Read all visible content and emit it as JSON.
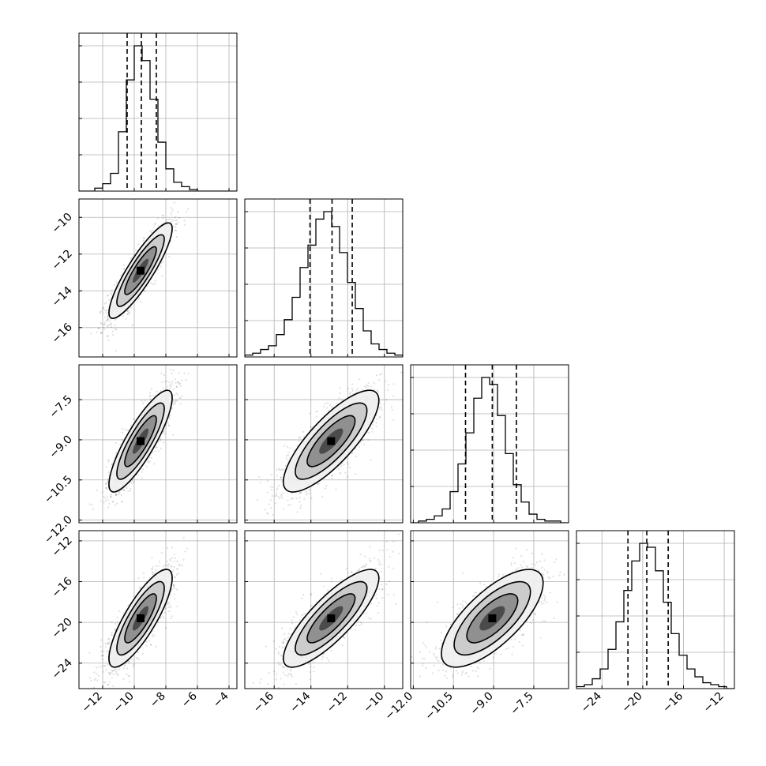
{
  "chart_data": {
    "type": "corner",
    "params": 4,
    "params_info": [
      {
        "name": "",
        "range": [
          -13.5,
          -3.5
        ],
        "ticks": [
          -12,
          -10,
          -8,
          -6,
          -4
        ],
        "tick_labels": [
          "−12",
          "−10",
          "−8",
          "−6",
          "−4"
        ],
        "quantiles": [
          -10.45,
          -9.55,
          -8.6
        ]
      },
      {
        "name": "",
        "range": [
          -17.6,
          -9.0
        ],
        "ticks": [
          -16,
          -14,
          -12,
          -10
        ],
        "tick_labels": [
          "−16",
          "−14",
          "−12",
          "−10"
        ],
        "quantiles": [
          -14.05,
          -12.85,
          -11.75
        ]
      },
      {
        "name": "",
        "range": [
          -12.1,
          -6.2
        ],
        "ticks": [
          -12.0,
          -10.5,
          -9.0,
          -7.5
        ],
        "tick_labels": [
          "−12.0",
          "−10.5",
          "−9.0",
          "−7.5"
        ],
        "quantiles": [
          -10.05,
          -9.05,
          -8.15
        ]
      },
      {
        "name": "",
        "range": [
          -26.5,
          -11.0
        ],
        "ticks": [
          -24,
          -20,
          -16,
          -12
        ],
        "tick_labels": [
          "−24",
          "−20",
          "−16",
          "−12"
        ],
        "quantiles": [
          -21.45,
          -19.6,
          -17.5
        ]
      }
    ],
    "histograms": [
      {
        "param": 0,
        "edges_range": [
          -13.5,
          -3.5
        ],
        "bins": 20,
        "counts": [
          0,
          0,
          2,
          5,
          12,
          40,
          75,
          98,
          88,
          62,
          33,
          15,
          6,
          3,
          1,
          0,
          0,
          0,
          0,
          0
        ]
      },
      {
        "param": 1,
        "edges_range": [
          -17.6,
          -9.0
        ],
        "bins": 20,
        "counts": [
          1,
          2,
          4,
          6,
          12,
          20,
          32,
          48,
          60,
          74,
          78,
          70,
          56,
          40,
          26,
          14,
          7,
          4,
          2,
          1
        ]
      },
      {
        "param": 2,
        "edges_range": [
          -12.1,
          -6.2
        ],
        "bins": 20,
        "counts": [
          0,
          1,
          2,
          4,
          8,
          18,
          34,
          52,
          72,
          84,
          80,
          62,
          40,
          22,
          12,
          5,
          2,
          1,
          1,
          0
        ]
      },
      {
        "param": 3,
        "edges_range": [
          -26.5,
          -11.0
        ],
        "bins": 20,
        "counts": [
          1,
          2,
          5,
          10,
          20,
          34,
          50,
          65,
          74,
          72,
          60,
          44,
          28,
          17,
          10,
          6,
          3,
          2,
          1,
          0
        ]
      }
    ],
    "joint": {
      "means": [
        -9.6,
        -12.9,
        -9.05,
        -19.6
      ],
      "stds": [
        1.0,
        1.3,
        0.95,
        2.4
      ],
      "correlations": {
        "1,0": 0.88,
        "2,0": 0.85,
        "2,1": 0.8,
        "3,0": 0.82,
        "3,1": 0.82,
        "3,2": 0.72
      }
    },
    "contour_levels_sigma": [
      0.5,
      1.0,
      1.5,
      2.0
    ],
    "grid": true,
    "legend": "none"
  }
}
